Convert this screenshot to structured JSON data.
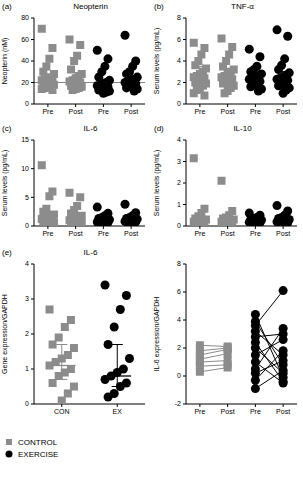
{
  "chart_data": [
    {
      "type": "dot",
      "panel": "(a)",
      "title": "Neopterin",
      "ylabel": "Neopterin (nM)",
      "categories": [
        "Pre",
        "Post",
        "Pre",
        "Post"
      ],
      "ylim": [
        0,
        80
      ],
      "yticks": [
        0,
        20,
        40,
        60,
        80
      ],
      "reference_line": 20,
      "series": [
        {
          "name": "CONTROL",
          "color": "#8c8c8c",
          "marker": "square",
          "values": [
            [
              70,
              52,
              42,
              35,
              30,
              28,
              25,
              24,
              23,
              22,
              21,
              20,
              20,
              19,
              18,
              17,
              16,
              15,
              14,
              13
            ],
            [
              60,
              55,
              45,
              40,
              32,
              28,
              26,
              24,
              22,
              21,
              20,
              19,
              18,
              17,
              16,
              15,
              14,
              13
            ],
            null,
            null
          ],
          "median": [
            21,
            21,
            null,
            null
          ],
          "q1": [
            17,
            16,
            null,
            null
          ],
          "q3": [
            27,
            27,
            null,
            null
          ]
        },
        {
          "name": "EXERCISE",
          "color": "#000000",
          "marker": "circle",
          "values": [
            null,
            null,
            [
              50,
              42,
              35,
              30,
              25,
              22,
              20,
              19,
              18,
              17,
              16,
              15,
              14,
              13,
              12,
              11,
              10
            ],
            [
              64,
              40,
              35,
              30,
              28,
              25,
              23,
              22,
              21,
              20,
              19,
              18,
              17,
              15,
              14,
              12
            ]
          ],
          "median": [
            null,
            null,
            18,
            20
          ],
          "q1": [
            null,
            null,
            14,
            16
          ],
          "q3": [
            null,
            null,
            23,
            26
          ]
        }
      ]
    },
    {
      "type": "dot",
      "panel": "(b)",
      "title": "TNF-α",
      "ylabel": "Serum levels (pg/mL)",
      "categories": [
        "Pre",
        "Post",
        "Pre",
        "Post"
      ],
      "ylim": [
        0,
        8
      ],
      "yticks": [
        0,
        2,
        4,
        6,
        8
      ],
      "series": [
        {
          "name": "CONTROL",
          "color": "#8c8c8c",
          "marker": "square",
          "values": [
            [
              5.7,
              5.2,
              4.6,
              4.0,
              3.6,
              3.3,
              3.0,
              2.8,
              2.6,
              2.5,
              2.4,
              2.3,
              2.1,
              2.0,
              1.9,
              1.7,
              1.5,
              1.3,
              1.0,
              0.8
            ],
            [
              6.1,
              5.3,
              4.6,
              4.0,
              3.5,
              3.2,
              3.0,
              2.8,
              2.6,
              2.5,
              2.3,
              2.2,
              2.0,
              1.9,
              1.7,
              1.5,
              1.2,
              1.0
            ],
            null,
            null
          ],
          "median": [
            2.5,
            2.5,
            null,
            null
          ],
          "q1": [
            1.9,
            1.8,
            null,
            null
          ],
          "q3": [
            3.5,
            3.3,
            null,
            null
          ]
        },
        {
          "name": "EXERCISE",
          "color": "#000000",
          "marker": "circle",
          "values": [
            null,
            null,
            [
              5.1,
              4.4,
              3.5,
              3.2,
              3.0,
              2.8,
              2.6,
              2.5,
              2.4,
              2.3,
              2.1,
              2.0,
              1.8,
              1.6,
              1.4,
              1.2
            ],
            [
              6.9,
              6.3,
              4.2,
              3.6,
              3.2,
              2.9,
              2.7,
              2.5,
              2.4,
              2.3,
              2.2,
              2.0,
              1.9,
              1.7,
              1.5,
              1.3,
              1.0
            ]
          ],
          "median": [
            null,
            null,
            2.4,
            2.4
          ],
          "q1": [
            null,
            null,
            1.9,
            1.9
          ],
          "q3": [
            null,
            null,
            2.9,
            3.0
          ]
        }
      ]
    },
    {
      "type": "dot",
      "panel": "(c)",
      "title": "IL-6",
      "ylabel": "Serum levels (pg/mL)",
      "categories": [
        "Pre",
        "Post",
        "Pre",
        "Post"
      ],
      "ylim": [
        0,
        15
      ],
      "yticks": [
        0,
        5,
        10,
        15
      ],
      "series": [
        {
          "name": "CONTROL",
          "color": "#8c8c8c",
          "marker": "square",
          "values": [
            [
              10.6,
              6.0,
              5.2,
              3.0,
              2.5,
              2.0,
              1.8,
              1.5,
              1.4,
              1.2,
              1.1,
              1.0,
              0.9,
              0.8,
              0.6,
              0.5,
              0.4,
              0.3
            ],
            [
              5.8,
              5.0,
              3.5,
              2.8,
              2.2,
              1.8,
              1.5,
              1.3,
              1.1,
              1.0,
              0.9,
              0.8,
              0.7,
              0.6,
              0.5,
              0.3
            ],
            null,
            null
          ],
          "median": [
            1.1,
            1.0,
            null,
            null
          ],
          "q1": [
            0.6,
            0.6,
            null,
            null
          ],
          "q3": [
            1.8,
            1.6,
            null,
            null
          ]
        },
        {
          "name": "EXERCISE",
          "color": "#000000",
          "marker": "circle",
          "values": [
            null,
            null,
            [
              3.3,
              2.2,
              1.8,
              1.5,
              1.3,
              1.1,
              1.0,
              0.9,
              0.8,
              0.7,
              0.6,
              0.5,
              0.4
            ],
            [
              3.8,
              2.3,
              1.8,
              1.5,
              1.3,
              1.2,
              1.1,
              1.0,
              0.9,
              0.8,
              0.7,
              0.6,
              0.4
            ]
          ],
          "median": [
            null,
            null,
            0.9,
            1.0
          ],
          "q1": [
            null,
            null,
            0.6,
            0.7
          ],
          "q3": [
            null,
            null,
            1.3,
            1.4
          ]
        }
      ]
    },
    {
      "type": "dot",
      "panel": "(d)",
      "title": "IL-10",
      "ylabel": "Serum levels (pg/mL)",
      "categories": [
        "Pre",
        "Post",
        "Pre",
        "Post"
      ],
      "ylim": [
        0,
        4
      ],
      "yticks": [
        0,
        1,
        2,
        3,
        4
      ],
      "series": [
        {
          "name": "CONTROL",
          "color": "#8c8c8c",
          "marker": "square",
          "values": [
            [
              3.15,
              0.8,
              0.6,
              0.45,
              0.35,
              0.3,
              0.28,
              0.25,
              0.22,
              0.2,
              0.18,
              0.15,
              0.12,
              0.1
            ],
            [
              2.1,
              0.7,
              0.5,
              0.4,
              0.35,
              0.3,
              0.28,
              0.25,
              0.22,
              0.2,
              0.18,
              0.15,
              0.1
            ],
            null,
            null
          ],
          "median": [
            0.22,
            0.25,
            null,
            null
          ],
          "q1": [
            0.15,
            0.18,
            null,
            null
          ],
          "q3": [
            0.35,
            0.35,
            null,
            null
          ]
        },
        {
          "name": "EXERCISE",
          "color": "#000000",
          "marker": "circle",
          "values": [
            null,
            null,
            [
              0.6,
              0.5,
              0.4,
              0.35,
              0.3,
              0.28,
              0.25,
              0.22,
              0.2,
              0.18,
              0.15,
              0.12
            ],
            [
              0.95,
              0.7,
              0.5,
              0.4,
              0.35,
              0.3,
              0.28,
              0.25,
              0.22,
              0.2,
              0.15,
              0.12
            ]
          ],
          "median": [
            null,
            null,
            0.24,
            0.26
          ],
          "q1": [
            null,
            null,
            0.17,
            0.19
          ],
          "q3": [
            null,
            null,
            0.33,
            0.36
          ]
        }
      ]
    },
    {
      "type": "dot",
      "panel": "(e)",
      "title": "IL-6",
      "ylabel": "Gene expression/GAPDH",
      "categories": [
        "CON",
        "EX"
      ],
      "ylim": [
        0,
        4
      ],
      "yticks": [
        0,
        1,
        2,
        3,
        4
      ],
      "legend": "bottom-left",
      "series": [
        {
          "name": "CONTROL",
          "color": "#8c8c8c",
          "marker": "square",
          "values": [
            [
              2.7,
              2.4,
              2.2,
              1.9,
              1.7,
              1.6,
              1.4,
              1.3,
              1.2,
              1.1,
              1.0,
              0.9,
              0.8,
              0.6,
              0.5,
              0.3,
              0.1
            ],
            null
          ],
          "median": [
            1.1,
            null
          ],
          "q1": [
            0.7,
            null
          ],
          "q3": [
            1.7,
            null
          ]
        },
        {
          "name": "EXERCISE",
          "color": "#000000",
          "marker": "circle",
          "values": [
            null,
            [
              3.4,
              3.1,
              2.7,
              2.2,
              1.7,
              1.3,
              1.0,
              0.9,
              0.8,
              0.7,
              0.6,
              0.5,
              0.3,
              0.2
            ]
          ],
          "median": [
            null,
            0.8
          ],
          "q1": [
            null,
            0.5
          ],
          "q3": [
            null,
            1.7
          ]
        }
      ]
    },
    {
      "type": "paired_line",
      "ylabel": "IL-6 expression/GAPDH",
      "categories": [
        "Pre",
        "Post",
        "Pre",
        "Post"
      ],
      "ylim": [
        -2,
        8
      ],
      "yticks": [
        -2,
        0,
        2,
        4,
        6,
        8
      ],
      "series": [
        {
          "name": "CONTROL",
          "color": "#8c8c8c",
          "marker": "square",
          "values": [
            [
              0.3,
              0.7,
              1.0,
              1.2,
              1.5,
              1.8,
              2.2
            ],
            [
              0.6,
              0.8,
              1.1,
              1.6,
              1.9,
              2.0,
              2.1
            ],
            null,
            null
          ]
        },
        {
          "name": "EXERCISE",
          "color": "#000000",
          "marker": "circle",
          "values": [
            null,
            null,
            [
              4.4,
              3.9,
              3.6,
              3.2,
              2.8,
              2.4,
              2.0,
              1.5,
              1.0,
              0.5,
              0.2,
              -0.9,
              -0.3
            ],
            [
              -0.1,
              0.8,
              6.1,
              1.5,
              3.0,
              -0.4,
              0.2,
              2.6,
              -0.5,
              3.4,
              1.1,
              0.4,
              1.8
            ]
          ]
        }
      ]
    }
  ]
}
